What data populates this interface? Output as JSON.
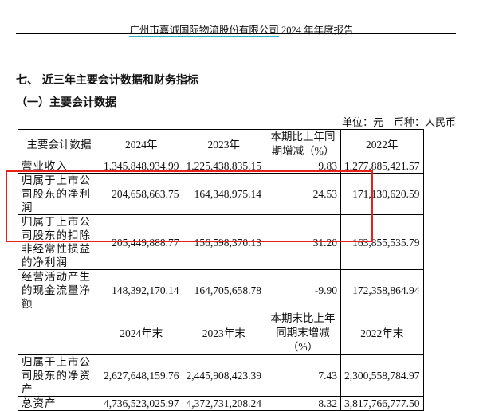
{
  "header": {
    "company": "广州市嘉诚国际物流股份有限公司",
    "report": "2024 年年度报告"
  },
  "section_title": "七、 近三年主要会计数据和财务指标",
  "subsection_title": "（一）主要会计数据",
  "unit_note": "单位：元　币种：人民币",
  "highlight_color": "#e8201a",
  "table": {
    "header1": [
      "主要会计数据",
      "2024年",
      "2023年",
      "本期比上年同期增减（%）",
      "2022年"
    ],
    "rows1": [
      [
        "营业收入",
        "1,345,848,934.99",
        "1,225,438,835.15",
        "9.83",
        "1,277,885,421.57"
      ],
      [
        "归属于上市公司股东的净利润",
        "204,658,663.75",
        "164,348,975.14",
        "24.53",
        "171,130,620.59"
      ],
      [
        "归属于上市公司股东的扣除非经常性损益的净利润",
        "205,449,888.77",
        "156,598,370.13",
        "31.20",
        "163,855,535.79"
      ],
      [
        "经营活动产生的现金流量净额",
        "148,392,170.14",
        "164,705,658.78",
        "-9.90",
        "172,358,864.94"
      ]
    ],
    "header2": [
      "",
      "2024年末",
      "2023年末",
      "本期末比上年同期末增减（%）",
      "2022年末"
    ],
    "rows2": [
      [
        "归属于上市公司股东的净资产",
        "2,627,648,159.76",
        "2,445,908,423.39",
        "7.43",
        "2,300,558,784.97"
      ],
      [
        "总资产",
        "4,736,523,025.97",
        "4,372,731,208.24",
        "8.32",
        "3,817,766,777.50"
      ]
    ]
  }
}
